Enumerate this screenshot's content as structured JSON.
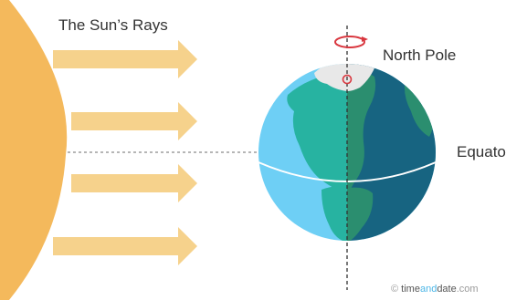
{
  "labels": {
    "rays_title": "The Sun’s Rays",
    "north_pole": "North Pole",
    "equator": "Equato"
  },
  "credit": {
    "symbol": "©",
    "time": "time",
    "and": "and",
    "date": "date",
    "domain": ".com"
  },
  "colors": {
    "sun": "#f4b95c",
    "sun_edge": "#f0a944",
    "ray_arrow": "#f6d28c",
    "ocean_day": "#6ecff5",
    "ocean_night": "#176481",
    "land_day": "#27b3a1",
    "land_night": "#2b8e6f",
    "ice": "#e8e8e8",
    "pole_marker": "#d9363e",
    "axis_line": "#333333",
    "equator_line": "#ffffff"
  },
  "icons": {
    "rotation": "rotation-arrow-icon",
    "credit_logo": "timeanddate-logo"
  }
}
